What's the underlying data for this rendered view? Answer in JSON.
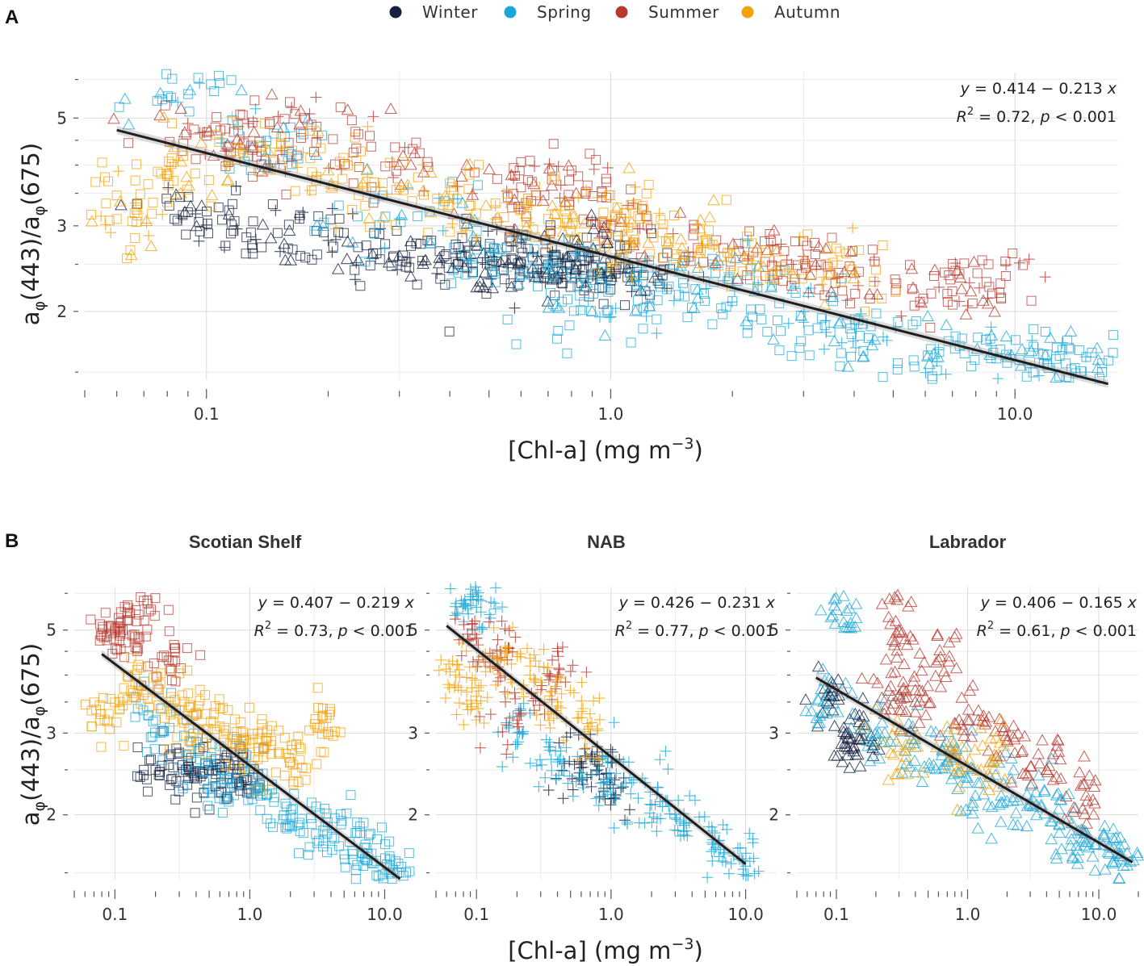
{
  "legend": {
    "items": [
      {
        "label": "Winter",
        "color": "#14213d"
      },
      {
        "label": "Spring",
        "color": "#1aa7d8"
      },
      {
        "label": "Summer",
        "color": "#b83a2f"
      },
      {
        "label": "Autumn",
        "color": "#f2a20c"
      }
    ]
  },
  "panel_a": {
    "letter": "A",
    "x_label": "[Chl-a] (mg m",
    "x_label_exp": "−3",
    "x_label_close": ")",
    "y_label_parts": [
      "a",
      "φ",
      "(443)/a",
      "φ",
      "(675)"
    ]
  },
  "panel_b": {
    "letter": "B",
    "x_label": "[Chl-a] (mg m",
    "x_label_exp": "−3",
    "x_label_close": ")",
    "y_label_parts": [
      "a",
      "φ",
      "(443)/a",
      "φ",
      "(675)"
    ]
  },
  "chart_data": [
    {
      "type": "scatter",
      "panel": "A",
      "title": "",
      "xscale": "log",
      "yscale": "log",
      "xlim": [
        0.05,
        18
      ],
      "ylim": [
        1.45,
        6.2
      ],
      "x_ticks": [
        0.1,
        1.0,
        10.0
      ],
      "x_tick_labels": [
        "0.1",
        "1.0",
        "10.0"
      ],
      "y_ticks": [
        2,
        3,
        5
      ],
      "y_tick_labels": [
        "2",
        "3",
        "5"
      ],
      "xlabel": "[Chl-a] (mg m−3)",
      "ylabel": "aφ(443)/aφ(675)",
      "fit": {
        "intercept": 0.414,
        "slope": -0.213,
        "x_range": [
          0.06,
          17
        ]
      },
      "equation": {
        "prefix": "y",
        "text": " = 0.414 − 0.213 ",
        "suffix": "x"
      },
      "r2": {
        "label": "R",
        "exp": "2",
        "text": " = 0.72, ",
        "p": "p",
        "ptext": " < 0.001"
      },
      "marker_shapes": {
        "Scotian Shelf": "square",
        "NAB": "cross",
        "Labrador": "triangle"
      },
      "series": [
        {
          "name": "Winter",
          "values_x": [
            0.09,
            0.15,
            0.2,
            0.3,
            0.42,
            0.55,
            0.7,
            0.8,
            0.95,
            1.1,
            0.85,
            0.6
          ],
          "values_y": [
            3.2,
            2.9,
            2.8,
            2.6,
            2.5,
            2.55,
            2.5,
            2.45,
            2.4,
            2.35,
            2.6,
            2.7
          ]
        },
        {
          "name": "Spring",
          "values_x": [
            0.09,
            0.14,
            0.3,
            0.5,
            0.8,
            1.2,
            2.0,
            3.0,
            4.5,
            6.5,
            9.0,
            12.0,
            15.0,
            0.9,
            1.8
          ],
          "values_y": [
            5.6,
            4.3,
            3.1,
            2.6,
            2.4,
            2.3,
            2.1,
            1.9,
            1.75,
            1.65,
            1.6,
            1.55,
            1.5,
            2.0,
            2.3
          ]
        },
        {
          "name": "Summer",
          "values_x": [
            0.1,
            0.13,
            0.18,
            0.3,
            0.6,
            1.0,
            1.9,
            2.8,
            4.0,
            7.0,
            8.5,
            0.8
          ],
          "values_y": [
            4.6,
            4.3,
            5.1,
            4.0,
            3.6,
            3.0,
            2.7,
            2.5,
            2.4,
            2.2,
            2.3,
            3.9
          ]
        },
        {
          "name": "Autumn",
          "values_x": [
            0.06,
            0.08,
            0.12,
            0.2,
            0.3,
            0.45,
            0.7,
            1.0,
            1.5,
            2.2,
            3.5,
            1.2
          ],
          "values_y": [
            3.1,
            3.8,
            4.4,
            3.9,
            3.6,
            3.3,
            3.1,
            2.9,
            2.7,
            2.6,
            2.4,
            3.3
          ]
        }
      ]
    },
    {
      "type": "scatter",
      "panel": "B",
      "title": "Scotian Shelf",
      "xscale": "log",
      "yscale": "log",
      "xlim": [
        0.05,
        17
      ],
      "ylim": [
        1.45,
        6.2
      ],
      "x_ticks": [
        0.1,
        1.0,
        10.0
      ],
      "x_tick_labels": [
        "0.1",
        "1.0",
        "10.0"
      ],
      "y_ticks": [
        2,
        3,
        5
      ],
      "y_tick_labels": [
        "2",
        "3",
        "5"
      ],
      "marker": "square",
      "fit": {
        "intercept": 0.407,
        "slope": -0.219,
        "x_range": [
          0.08,
          13
        ]
      },
      "equation": {
        "prefix": "y",
        "text": " = 0.407 − 0.219 ",
        "suffix": "x"
      },
      "r2": {
        "label": "R",
        "exp": "2",
        "text": " = 0.73, ",
        "p": "p",
        "ptext": " < 0.001"
      },
      "series": [
        {
          "name": "Winter",
          "values_x": [
            0.2,
            0.35,
            0.5,
            0.7,
            0.9
          ],
          "values_y": [
            2.5,
            2.4,
            2.5,
            2.45,
            2.4
          ]
        },
        {
          "name": "Spring",
          "values_x": [
            0.2,
            0.4,
            0.7,
            1.2,
            2.0,
            3.5,
            5.5,
            8.0,
            11.0
          ],
          "values_y": [
            3.2,
            2.6,
            2.4,
            2.2,
            2.0,
            1.85,
            1.75,
            1.65,
            1.55
          ]
        },
        {
          "name": "Summer",
          "values_x": [
            0.1,
            0.12,
            0.15,
            0.25
          ],
          "values_y": [
            5.0,
            4.7,
            5.4,
            4.3
          ]
        },
        {
          "name": "Autumn",
          "values_x": [
            0.09,
            0.15,
            0.25,
            0.4,
            0.6,
            0.9,
            1.3,
            2.0,
            3.5
          ],
          "values_y": [
            3.3,
            3.8,
            3.5,
            3.3,
            3.1,
            2.9,
            2.8,
            2.6,
            3.1
          ]
        }
      ]
    },
    {
      "type": "scatter",
      "panel": "B",
      "title": "NAB",
      "xscale": "log",
      "yscale": "log",
      "xlim": [
        0.05,
        17
      ],
      "ylim": [
        1.45,
        6.2
      ],
      "x_ticks": [
        0.1,
        1.0,
        10.0
      ],
      "x_tick_labels": [
        "0.1",
        "1.0",
        "10.0"
      ],
      "y_ticks": [
        2,
        3,
        5
      ],
      "y_tick_labels": [
        "2",
        "3",
        "5"
      ],
      "marker": "cross",
      "fit": {
        "intercept": 0.426,
        "slope": -0.231,
        "x_range": [
          0.06,
          10
        ]
      },
      "equation": {
        "prefix": "y",
        "text": " = 0.426 − 0.231 ",
        "suffix": "x"
      },
      "r2": {
        "label": "R",
        "exp": "2",
        "text": " = 0.77, ",
        "p": "p",
        "ptext": " < 0.001"
      },
      "series": [
        {
          "name": "Winter",
          "values_x": [
            0.6,
            0.8,
            1.0
          ],
          "values_y": [
            2.6,
            2.5,
            2.4
          ]
        },
        {
          "name": "Spring",
          "values_x": [
            0.09,
            0.1,
            0.2,
            0.4,
            0.8,
            1.2,
            2.0,
            3.5,
            6.0,
            10.0
          ],
          "values_y": [
            5.9,
            5.6,
            3.0,
            2.6,
            2.5,
            2.3,
            2.1,
            1.9,
            1.7,
            1.55
          ]
        },
        {
          "name": "Summer",
          "values_x": [
            0.1,
            0.15,
            0.2,
            0.35
          ],
          "values_y": [
            4.8,
            4.5,
            3.2,
            4.0
          ]
        },
        {
          "name": "Autumn",
          "values_x": [
            0.07,
            0.1,
            0.15,
            0.25,
            0.4,
            0.7
          ],
          "values_y": [
            4.0,
            3.6,
            4.3,
            4.0,
            3.5,
            3.1
          ]
        }
      ]
    },
    {
      "type": "scatter",
      "panel": "B",
      "title": "Labrador",
      "xscale": "log",
      "yscale": "log",
      "xlim": [
        0.05,
        20
      ],
      "ylim": [
        1.45,
        6.2
      ],
      "x_ticks": [
        0.1,
        1.0,
        10.0
      ],
      "x_tick_labels": [
        "0.1",
        "1.0",
        "10.0"
      ],
      "y_ticks": [
        2,
        3,
        5
      ],
      "y_tick_labels": [
        "2",
        "3",
        "5"
      ],
      "marker": "triangle",
      "fit": {
        "intercept": 0.406,
        "slope": -0.165,
        "x_range": [
          0.07,
          18
        ]
      },
      "equation": {
        "prefix": "y",
        "text": " = 0.406 − 0.165 ",
        "suffix": "x"
      },
      "r2": {
        "label": "R",
        "exp": "2",
        "text": " = 0.61, ",
        "p": "p",
        "ptext": " < 0.001"
      },
      "series": [
        {
          "name": "Winter",
          "values_x": [
            0.09,
            0.12,
            0.15
          ],
          "values_y": [
            3.6,
            2.8,
            2.9
          ]
        },
        {
          "name": "Spring",
          "values_x": [
            0.08,
            0.12,
            0.2,
            0.4,
            0.7,
            1.0,
            1.8,
            3.0,
            5.0,
            8.0,
            12.0,
            15.0
          ],
          "values_y": [
            3.5,
            5.5,
            3.0,
            2.8,
            2.6,
            2.4,
            2.2,
            2.1,
            1.9,
            1.75,
            1.65,
            1.6
          ]
        },
        {
          "name": "Summer",
          "values_x": [
            0.25,
            0.3,
            0.4,
            0.6,
            1.0,
            2.0,
            4.0,
            8.0
          ],
          "values_y": [
            3.7,
            5.0,
            3.5,
            4.3,
            3.2,
            2.9,
            2.5,
            2.2
          ]
        },
        {
          "name": "Autumn",
          "values_x": [
            0.3,
            0.8,
            1.5
          ],
          "values_y": [
            2.8,
            2.7,
            2.6
          ]
        }
      ]
    }
  ]
}
